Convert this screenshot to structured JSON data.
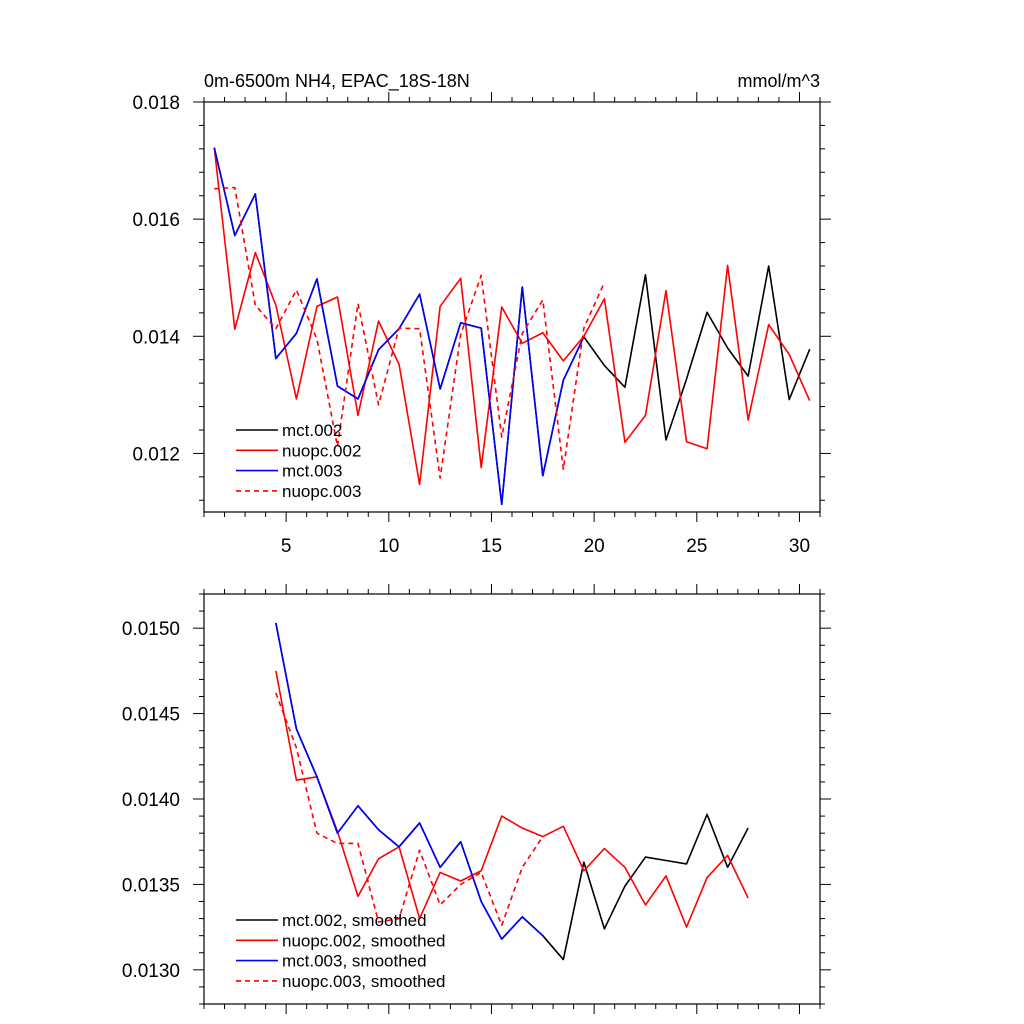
{
  "chart_data": [
    {
      "type": "line",
      "title": "0m-6500m NH4, EPAC_18S-18N",
      "units": "mmol/m^3",
      "xlabel": "",
      "ylabel": "",
      "xlim": [
        1,
        31
      ],
      "ylim": [
        0.011,
        0.018
      ],
      "xticks": [
        5,
        10,
        15,
        20,
        25,
        30
      ],
      "yticks": [
        0.012,
        0.014,
        0.016,
        0.018
      ],
      "ytick_labels": [
        "0.012",
        "0.014",
        "0.016",
        "0.018"
      ],
      "grid": false,
      "legend_position": "bottom-left",
      "series": [
        {
          "name": "mct.002",
          "color": "#000000",
          "dash": "solid",
          "x": [
            1.5,
            2.5,
            3.5,
            4.5,
            5.5,
            6.5,
            7.5,
            8.5,
            9.5,
            10.5,
            11.5,
            12.5,
            13.5,
            14.5,
            15.5,
            16.5,
            17.5,
            18.5,
            19.5,
            20.5,
            21.5,
            22.5,
            23.5,
            24.5,
            25.5,
            26.5,
            27.5,
            28.5,
            29.5,
            30.5
          ],
          "values": [
            0.01722,
            0.01572,
            0.01643,
            0.01362,
            0.01405,
            0.01498,
            0.01315,
            0.01293,
            0.01377,
            0.01413,
            0.01472,
            0.0131,
            0.01423,
            0.01414,
            0.01113,
            0.01484,
            0.01162,
            0.01325,
            0.01399,
            0.0135,
            0.01313,
            0.01505,
            0.01223,
            0.01327,
            0.01441,
            0.0138,
            0.01332,
            0.0152,
            0.01292,
            0.01378
          ]
        },
        {
          "name": "nuopc.002",
          "color": "#ff0000",
          "dash": "solid",
          "x": [
            1.5,
            2.5,
            3.5,
            4.5,
            5.5,
            6.5,
            7.5,
            8.5,
            9.5,
            10.5,
            11.5,
            12.5,
            13.5,
            14.5,
            15.5,
            16.5,
            17.5,
            18.5,
            19.5,
            20.5,
            21.5,
            22.5,
            23.5,
            24.5,
            25.5,
            26.5,
            27.5,
            28.5,
            29.5,
            30.5
          ],
          "values": [
            0.01722,
            0.01412,
            0.01543,
            0.01453,
            0.01293,
            0.01451,
            0.01467,
            0.01265,
            0.01426,
            0.01352,
            0.01147,
            0.01451,
            0.01499,
            0.01176,
            0.0145,
            0.01388,
            0.01406,
            0.01358,
            0.014,
            0.01464,
            0.01219,
            0.01265,
            0.01478,
            0.0122,
            0.01208,
            0.01521,
            0.01257,
            0.0142,
            0.01369,
            0.0129
          ]
        },
        {
          "name": "mct.003",
          "color": "#0000ff",
          "dash": "solid",
          "x": [
            1.5,
            2.5,
            3.5,
            4.5,
            5.5,
            6.5,
            7.5,
            8.5,
            9.5,
            10.5,
            11.5,
            12.5,
            13.5,
            14.5,
            15.5,
            16.5,
            17.5,
            18.5,
            19.5
          ],
          "values": [
            0.01722,
            0.01572,
            0.01643,
            0.01362,
            0.01405,
            0.01498,
            0.01315,
            0.01293,
            0.01377,
            0.01413,
            0.01472,
            0.0131,
            0.01423,
            0.01414,
            0.01113,
            0.01484,
            0.01162,
            0.01325,
            0.01399
          ]
        },
        {
          "name": "nuopc.003",
          "color": "#ff0000",
          "dash": "dashed",
          "x": [
            1.5,
            2.5,
            3.5,
            4.5,
            5.5,
            6.5,
            7.5,
            8.5,
            9.5,
            10.5,
            11.5,
            12.5,
            13.5,
            14.5,
            15.5,
            16.5,
            17.5,
            18.5,
            19.5,
            20.5
          ],
          "values": [
            0.01652,
            0.01654,
            0.01453,
            0.01413,
            0.01479,
            0.01395,
            0.01212,
            0.01456,
            0.01283,
            0.01414,
            0.01413,
            0.01158,
            0.01403,
            0.01504,
            0.01228,
            0.01405,
            0.01462,
            0.01173,
            0.01414,
            0.01492
          ]
        }
      ]
    },
    {
      "type": "line",
      "title": "",
      "xlabel": "",
      "ylabel": "",
      "xlim": [
        1,
        31
      ],
      "ylim": [
        0.0128,
        0.0152
      ],
      "xticks": [
        5,
        10,
        15,
        20,
        25,
        30
      ],
      "yticks": [
        0.013,
        0.0135,
        0.014,
        0.0145,
        0.015
      ],
      "ytick_labels": [
        "0.0130",
        "0.0135",
        "0.0140",
        "0.0145",
        "0.0150"
      ],
      "grid": false,
      "legend_position": "bottom-left",
      "series": [
        {
          "name": "mct.002, smoothed",
          "color": "#000000",
          "dash": "solid",
          "x": [
            4.5,
            5.5,
            6.5,
            7.5,
            8.5,
            9.5,
            10.5,
            11.5,
            12.5,
            13.5,
            14.5,
            15.5,
            16.5,
            17.5,
            18.5,
            19.5,
            20.5,
            21.5,
            22.5,
            23.5,
            24.5,
            25.5,
            26.5,
            27.5
          ],
          "values": [
            0.01503,
            0.01441,
            0.01413,
            0.0138,
            0.01396,
            0.01382,
            0.01372,
            0.01386,
            0.0136,
            0.01375,
            0.0134,
            0.01318,
            0.01331,
            0.0132,
            0.01306,
            0.01363,
            0.01324,
            0.01349,
            0.01366,
            0.01364,
            0.01362,
            0.01391,
            0.0136,
            0.01383
          ]
        },
        {
          "name": "nuopc.002, smoothed",
          "color": "#ff0000",
          "dash": "solid",
          "x": [
            4.5,
            5.5,
            6.5,
            7.5,
            8.5,
            9.5,
            10.5,
            11.5,
            12.5,
            13.5,
            14.5,
            15.5,
            16.5,
            17.5,
            18.5,
            19.5,
            20.5,
            21.5,
            22.5,
            23.5,
            24.5,
            25.5,
            26.5,
            27.5
          ],
          "values": [
            0.01475,
            0.01411,
            0.01413,
            0.01381,
            0.01343,
            0.01365,
            0.01372,
            0.0133,
            0.01357,
            0.01352,
            0.01358,
            0.0139,
            0.01383,
            0.01378,
            0.01384,
            0.01358,
            0.01371,
            0.0136,
            0.01338,
            0.01355,
            0.01325,
            0.01354,
            0.01367,
            0.01342
          ]
        },
        {
          "name": "mct.003, smoothed",
          "color": "#0000ff",
          "dash": "solid",
          "x": [
            4.5,
            5.5,
            6.5,
            7.5,
            8.5,
            9.5,
            10.5,
            11.5,
            12.5,
            13.5,
            14.5,
            15.5,
            16.5,
            17.5
          ],
          "values": [
            0.01503,
            0.01441,
            0.01413,
            0.0138,
            0.01396,
            0.01382,
            0.01372,
            0.01386,
            0.0136,
            0.01375,
            0.0134,
            0.01318,
            0.01331,
            0.0132
          ]
        },
        {
          "name": "nuopc.003, smoothed",
          "color": "#ff0000",
          "dash": "dashed",
          "x": [
            4.5,
            5.5,
            6.5,
            7.5,
            8.5,
            9.5,
            10.5,
            11.5,
            12.5,
            13.5,
            14.5,
            15.5,
            16.5,
            17.5
          ],
          "values": [
            0.01462,
            0.0143,
            0.0138,
            0.01374,
            0.01374,
            0.01328,
            0.0133,
            0.0137,
            0.01338,
            0.0135,
            0.01357,
            0.01326,
            0.0136,
            0.01378
          ]
        }
      ]
    }
  ]
}
